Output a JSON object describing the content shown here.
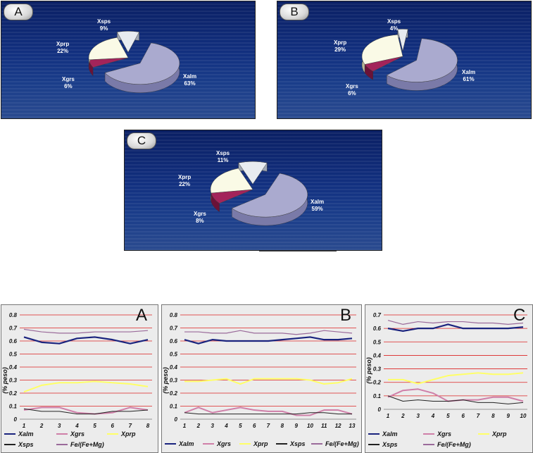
{
  "colors": {
    "Xalm": "#1a237e",
    "Xgrs": "#cf7fa8",
    "Xprp": "#ffff66",
    "Xsps": "#222222",
    "FeFeMg": "#9a6a9a",
    "pie_alm": "#aaaacf",
    "pie_grs": "#a3245a",
    "pie_prp": "#fafae6",
    "pie_sps": "#e8ecf0",
    "gridline": "#dd2222"
  },
  "chart_data": [
    {
      "type": "pie",
      "panel": "A",
      "slices": [
        {
          "name": "Xalm",
          "value": 63,
          "label": "63%"
        },
        {
          "name": "Xgrs",
          "value": 6,
          "label": "6%"
        },
        {
          "name": "Xprp",
          "value": 22,
          "label": "22%"
        },
        {
          "name": "Xsps",
          "value": 9,
          "label": "9%"
        }
      ]
    },
    {
      "type": "pie",
      "panel": "B",
      "slices": [
        {
          "name": "Xalm",
          "value": 61,
          "label": "61%"
        },
        {
          "name": "Xgrs",
          "value": 6,
          "label": "6%"
        },
        {
          "name": "Xprp",
          "value": 29,
          "label": "29%"
        },
        {
          "name": "Xsps",
          "value": 4,
          "label": "4%"
        }
      ]
    },
    {
      "type": "pie",
      "panel": "C",
      "slices": [
        {
          "name": "Xalm",
          "value": 59,
          "label": "59%"
        },
        {
          "name": "Xgrs",
          "value": 8,
          "label": "8%"
        },
        {
          "name": "Xprp",
          "value": 22,
          "label": "22%"
        },
        {
          "name": "Xsps",
          "value": 11,
          "label": "11%"
        }
      ]
    },
    {
      "type": "line",
      "panel": "A",
      "ylabel": "(% peso)",
      "ylim": [
        0,
        0.8
      ],
      "yticks": [
        "0",
        "0.1",
        "0.2",
        "0.3",
        "0.4",
        "0.5",
        "0.6",
        "0.7",
        "0.8"
      ],
      "x": [
        1,
        2,
        3,
        4,
        5,
        6,
        7,
        8
      ],
      "series": [
        {
          "name": "Xalm",
          "values": [
            0.63,
            0.59,
            0.58,
            0.62,
            0.63,
            0.61,
            0.58,
            0.61
          ]
        },
        {
          "name": "Xgrs",
          "values": [
            0.07,
            0.09,
            0.09,
            0.05,
            0.04,
            0.05,
            0.09,
            0.07
          ]
        },
        {
          "name": "Xprp",
          "values": [
            0.21,
            0.26,
            0.28,
            0.28,
            0.29,
            0.28,
            0.27,
            0.25
          ]
        },
        {
          "name": "Xsps",
          "values": [
            0.08,
            0.06,
            0.06,
            0.04,
            0.04,
            0.06,
            0.06,
            0.07
          ]
        },
        {
          "name": "Fe/(Fe+Mg)",
          "values": [
            0.69,
            0.67,
            0.66,
            0.66,
            0.67,
            0.67,
            0.67,
            0.68
          ]
        }
      ],
      "legend": [
        "Xalm",
        "Xgrs",
        "Xprp",
        "Xsps",
        "Fe/(Fe+Mg)"
      ]
    },
    {
      "type": "line",
      "panel": "B",
      "ylabel": "(% peso)",
      "ylim": [
        0,
        0.8
      ],
      "yticks": [
        "0",
        "0.1",
        "0.2",
        "0.3",
        "0.4",
        "0.5",
        "0.6",
        "0.7",
        "0.8"
      ],
      "x": [
        1,
        2,
        3,
        4,
        5,
        6,
        7,
        8,
        9,
        10,
        11,
        12,
        13
      ],
      "series": [
        {
          "name": "Xalm",
          "values": [
            0.61,
            0.58,
            0.61,
            0.6,
            0.6,
            0.6,
            0.6,
            0.61,
            0.62,
            0.63,
            0.61,
            0.61,
            0.62
          ]
        },
        {
          "name": "Xgrs",
          "values": [
            0.05,
            0.09,
            0.05,
            0.07,
            0.09,
            0.07,
            0.06,
            0.06,
            0.03,
            0.03,
            0.07,
            0.07,
            0.04
          ]
        },
        {
          "name": "Xprp",
          "values": [
            0.29,
            0.29,
            0.3,
            0.31,
            0.27,
            0.31,
            0.31,
            0.31,
            0.31,
            0.3,
            0.27,
            0.28,
            0.31
          ]
        },
        {
          "name": "Xsps",
          "values": [
            0.05,
            0.04,
            0.04,
            0.04,
            0.04,
            0.04,
            0.04,
            0.04,
            0.04,
            0.05,
            0.05,
            0.04,
            0.04
          ]
        },
        {
          "name": "Fe/(Fe+Mg)",
          "values": [
            0.67,
            0.67,
            0.66,
            0.66,
            0.68,
            0.66,
            0.66,
            0.66,
            0.65,
            0.66,
            0.68,
            0.67,
            0.66
          ]
        }
      ],
      "legend": [
        "Xalm",
        "Xgrs",
        "Xprp",
        "Xsps",
        "Fe/(Fe+Mg)"
      ]
    },
    {
      "type": "line",
      "panel": "C",
      "ylabel": "(% peso)",
      "ylim": [
        0,
        0.7
      ],
      "yticks": [
        "0",
        "0.1",
        "0.2",
        "0.3",
        "0.4",
        "0.5",
        "0.6",
        "0.7"
      ],
      "x": [
        1,
        2,
        3,
        4,
        5,
        6,
        7,
        8,
        9,
        10
      ],
      "series": [
        {
          "name": "Xalm",
          "values": [
            0.6,
            0.58,
            0.6,
            0.6,
            0.63,
            0.6,
            0.6,
            0.6,
            0.6,
            0.61
          ]
        },
        {
          "name": "Xgrs",
          "values": [
            0.09,
            0.14,
            0.15,
            0.12,
            0.06,
            0.07,
            0.07,
            0.09,
            0.09,
            0.06
          ]
        },
        {
          "name": "Xprp",
          "values": [
            0.22,
            0.22,
            0.19,
            0.22,
            0.25,
            0.26,
            0.27,
            0.26,
            0.26,
            0.27
          ]
        },
        {
          "name": "Xsps",
          "values": [
            0.1,
            0.06,
            0.07,
            0.06,
            0.06,
            0.07,
            0.05,
            0.05,
            0.04,
            0.05
          ]
        },
        {
          "name": "Fe/(Fe+Mg)",
          "values": [
            0.66,
            0.63,
            0.65,
            0.64,
            0.65,
            0.65,
            0.64,
            0.64,
            0.63,
            0.64
          ]
        }
      ],
      "legend": [
        "Xalm",
        "Xgrs",
        "Xprp",
        "Xsps",
        "Fe/(Fe+Mg)"
      ]
    }
  ]
}
